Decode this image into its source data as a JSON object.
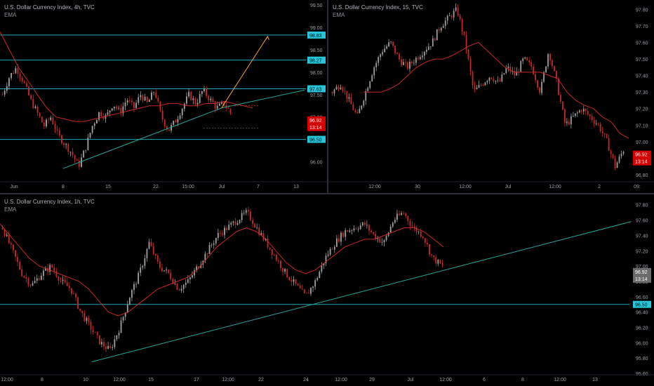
{
  "colors": {
    "background": "#000000",
    "text": "#9aa0a6",
    "up_candle": "#9e9e9e",
    "down_candle": "#c62828",
    "ema": "#c62828",
    "level_line": "#26c6da",
    "trend_line": "#26a69a",
    "projection": "#f5a623",
    "price_badge": "#d50000",
    "level_badge": "#26c6da"
  },
  "chart_data": [
    {
      "id": "pane-4h",
      "type": "candlestick",
      "title": "U.S. Dollar Currency Index, 4h, TVC",
      "indicator": "EMA",
      "y_ticks": [
        "99.50",
        "99.00",
        "98.50",
        "98.00",
        "97.50",
        "97.00",
        "96.50",
        "96.00"
      ],
      "x_ticks": [
        "Jun",
        "8",
        "15",
        "22",
        "15:00",
        "Jul",
        "7",
        "13"
      ],
      "ylim": [
        95.6,
        99.55
      ],
      "levels": [
        98.83,
        98.27,
        97.63,
        96.5
      ],
      "level_labels": [
        "98.83",
        "98.27",
        "97.63",
        "96.50"
      ],
      "price": "96.92",
      "countdown": "13:14",
      "trendline": [
        [
          8,
          95.85
        ],
        [
          32,
          97.2
        ]
      ],
      "projection": [
        [
          32,
          97.2
        ],
        [
          39,
          98.8
        ]
      ],
      "series_path": [
        97.5,
        97.9,
        98.1,
        97.8,
        97.4,
        97.1,
        96.8,
        97.0,
        96.6,
        96.4,
        96.2,
        95.9,
        96.3,
        96.8,
        97.1,
        97.0,
        97.3,
        97.1,
        97.4,
        97.2,
        97.5,
        97.3,
        97.6,
        97.0,
        96.7,
        96.9,
        97.2,
        97.5,
        97.3,
        97.6,
        97.4,
        97.2,
        97.3,
        97.1
      ],
      "ema_path": [
        98.9,
        98.5,
        98.1,
        97.8,
        97.5,
        97.2,
        97.0,
        96.95,
        96.9,
        96.9,
        96.95,
        97.0,
        97.05,
        97.1,
        97.15,
        97.2,
        97.25,
        97.25,
        97.3,
        97.3,
        97.25,
        97.25,
        97.3,
        97.3,
        97.35,
        97.3,
        97.25,
        97.2
      ]
    },
    {
      "id": "pane-15m",
      "type": "candlestick",
      "title": "U.S. Dollar Currency Index, 15, TVC",
      "indicator": "EMA",
      "y_ticks": [
        "97.80",
        "97.70",
        "97.60",
        "97.50",
        "97.40",
        "97.30",
        "97.20",
        "97.10",
        "97.00",
        "96.90",
        "96.80"
      ],
      "x_ticks": [
        "12:00",
        "30",
        "12:00",
        "Jul",
        "12:00",
        "2",
        "09:"
      ],
      "ylim": [
        96.77,
        97.84
      ],
      "price": "96.92",
      "countdown": "13:14",
      "series_path": [
        97.3,
        97.35,
        97.25,
        97.15,
        97.3,
        97.45,
        97.55,
        97.6,
        97.5,
        97.45,
        97.5,
        97.55,
        97.6,
        97.7,
        97.75,
        97.8,
        97.6,
        97.3,
        97.35,
        97.4,
        97.35,
        97.45,
        97.4,
        97.5,
        97.45,
        97.3,
        97.55,
        97.35,
        97.1,
        97.15,
        97.2,
        97.15,
        97.1,
        97.0,
        96.85,
        96.95
      ],
      "ema_path": [
        97.3,
        97.3,
        97.3,
        97.32,
        97.35,
        97.4,
        97.45,
        97.48,
        97.5,
        97.5,
        97.52,
        97.55,
        97.58,
        97.6,
        97.55,
        97.5,
        97.45,
        97.42,
        97.42,
        97.42,
        97.42,
        97.4,
        97.38,
        97.3,
        97.25,
        97.22,
        97.2,
        97.15,
        97.12,
        97.05,
        97.02
      ]
    },
    {
      "id": "pane-1h",
      "type": "candlestick",
      "title": "U.S. Dollar Currency Index, 1h, TVC",
      "indicator": "EMA",
      "y_ticks": [
        "97.80",
        "97.60",
        "97.40",
        "97.20",
        "97.00",
        "96.80",
        "96.60",
        "96.40",
        "96.20",
        "96.00",
        "95.80",
        "95.60"
      ],
      "x_ticks": [
        "12:00",
        "8",
        "10",
        "12:00",
        "15",
        "17",
        "12:00",
        "22",
        "24",
        "12:00",
        "29",
        "Jul",
        "12:00",
        "6",
        "8",
        "12:00",
        "13"
      ],
      "ylim": [
        95.6,
        97.88
      ],
      "levels": [
        96.5
      ],
      "level_labels": [
        "96.50"
      ],
      "price": "96.92",
      "countdown": "13:14",
      "trendline": [
        [
          0.14,
          95.75
        ],
        [
          0.965,
          97.58
        ]
      ],
      "series_path": [
        97.5,
        97.2,
        96.9,
        96.75,
        96.9,
        97.0,
        96.8,
        96.7,
        96.4,
        96.2,
        96.0,
        95.9,
        96.2,
        96.6,
        96.9,
        97.3,
        97.0,
        96.9,
        96.7,
        96.8,
        97.0,
        97.2,
        97.4,
        97.5,
        97.6,
        97.7,
        97.5,
        97.3,
        97.1,
        96.9,
        96.75,
        96.6,
        96.8,
        97.1,
        97.3,
        97.45,
        97.5,
        97.55,
        97.4,
        97.3,
        97.6,
        97.7,
        97.5,
        97.4,
        97.1,
        97.0
      ],
      "ema_path": [
        97.55,
        97.4,
        97.25,
        97.1,
        97.0,
        96.95,
        96.9,
        96.85,
        96.8,
        96.7,
        96.55,
        96.4,
        96.35,
        96.4,
        96.5,
        96.6,
        96.7,
        96.75,
        96.8,
        96.85,
        96.95,
        97.1,
        97.25,
        97.35,
        97.45,
        97.5,
        97.45,
        97.35,
        97.2,
        97.05,
        96.95,
        96.9,
        96.95,
        97.05,
        97.15,
        97.25,
        97.3,
        97.35,
        97.35,
        97.4,
        97.45,
        97.5,
        97.5,
        97.45,
        97.35,
        97.25
      ]
    }
  ]
}
